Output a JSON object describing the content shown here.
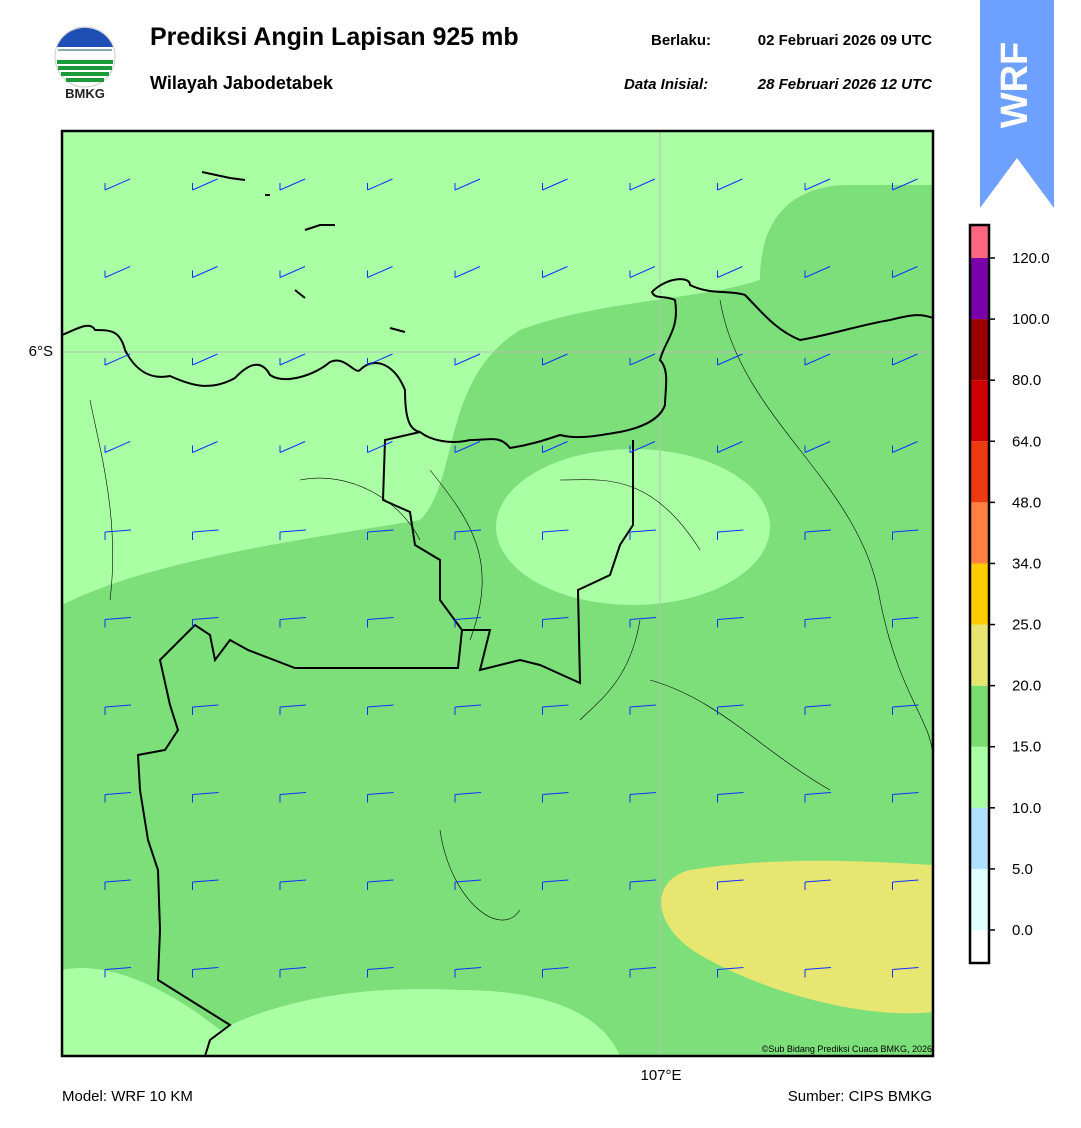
{
  "header": {
    "title": "Prediksi Angin Lapisan 925 mb",
    "subtitle": "Wilayah Jabodetabek",
    "valid_label": "Berlaku:",
    "valid_time": "02 Februari 2026 09 UTC",
    "init_label": "Data Inisial:",
    "init_time": "28 Februari 2026 12 UTC"
  },
  "logo": {
    "text": "BMKG"
  },
  "badge": "WRF",
  "map": {
    "lat_label": "6°S",
    "lon_label": "107°E",
    "credit": "©Sub Bidang Prediksi Cuaca BMKG, 2026"
  },
  "colorbar": {
    "ticks": [
      "0.0",
      "5.0",
      "10.0",
      "15.0",
      "20.0",
      "25.0",
      "34.0",
      "48.0",
      "64.0",
      "80.0",
      "100.0",
      "120.0"
    ],
    "colors": [
      "#ffffff",
      "#e0ffff",
      "#b0e0ff",
      "#aaffa4",
      "#78dc6e",
      "#e6e670",
      "#ffcc00",
      "#ff8040",
      "#ee3a10",
      "#cc0000",
      "#990000",
      "#7a00aa",
      "#ff6680"
    ]
  },
  "footer": {
    "model": "Model: WRF 10 KM",
    "source": "Sumber: CIPS BMKG"
  }
}
